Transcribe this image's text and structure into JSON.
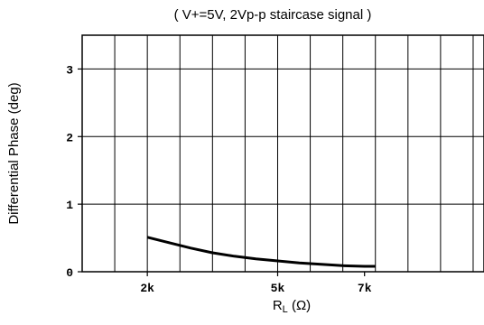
{
  "chart_data": {
    "type": "line",
    "title": "",
    "subtitle": "( V+=5V, 2Vp-p staircase signal )",
    "ylabel": "Differential Phase (deg)",
    "xlabel_main": "R",
    "xlabel_sub": "L",
    "xlabel_unit": " (Ω)",
    "ylim": [
      0,
      3.5
    ],
    "yticks": [
      {
        "value": 0,
        "label": "0"
      },
      {
        "value": 1,
        "label": "1"
      },
      {
        "value": 2,
        "label": "2"
      },
      {
        "value": 3,
        "label": "3"
      }
    ],
    "xlim": [
      0.5,
      9.75
    ],
    "xticks": [
      {
        "value": 2,
        "label": "2k"
      },
      {
        "value": 5,
        "label": "5k"
      },
      {
        "value": 7,
        "label": "7k"
      }
    ],
    "xgrid": [
      1.25,
      2,
      2.75,
      3.5,
      4.25,
      5,
      5.75,
      6.5,
      7.25,
      8,
      8.75,
      9.5
    ],
    "ygrid": [
      0,
      1,
      2,
      3
    ],
    "grid": true,
    "series": [
      {
        "x": [
          2.0,
          2.5,
          3.0,
          3.5,
          4.0,
          4.5,
          5.0,
          5.5,
          6.0,
          6.5,
          7.0,
          7.25
        ],
        "y": [
          0.51,
          0.43,
          0.35,
          0.28,
          0.23,
          0.19,
          0.16,
          0.13,
          0.11,
          0.09,
          0.08,
          0.08
        ]
      }
    ]
  }
}
